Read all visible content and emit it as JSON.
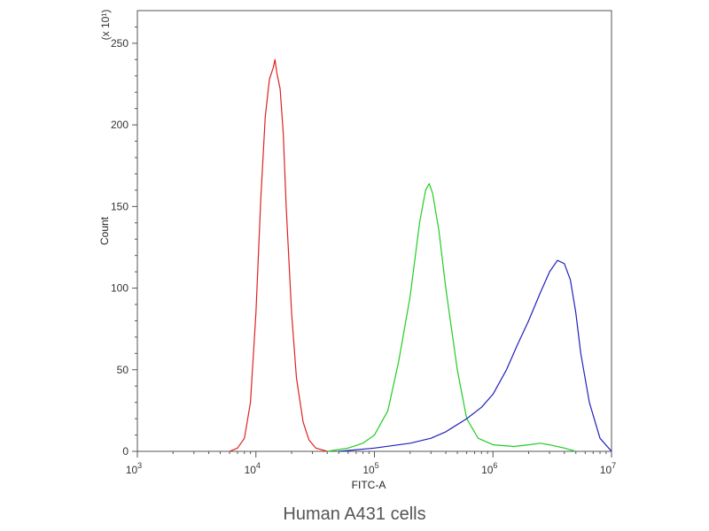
{
  "chart_data": {
    "type": "line",
    "title": "",
    "caption": "Human A431 cells",
    "xlabel": "FITC-A",
    "ylabel": "Count",
    "y_multiplier_label": "(x 10¹)",
    "xscale": "log",
    "xlim": [
      1000,
      10000000
    ],
    "ylim": [
      0,
      270
    ],
    "x_ticks": [
      {
        "base": "10",
        "exp": "3"
      },
      {
        "base": "10",
        "exp": "4"
      },
      {
        "base": "10",
        "exp": "5"
      },
      {
        "base": "10",
        "exp": "6"
      },
      {
        "base": "10",
        "exp": "7"
      }
    ],
    "y_ticks": [
      "0",
      "50",
      "100",
      "150",
      "200",
      "250"
    ],
    "grid": false,
    "series": [
      {
        "color": "#e02020",
        "x": [
          6000,
          7000,
          8000,
          9000,
          10000,
          11000,
          12000,
          13000,
          14000,
          14500,
          15000,
          16000,
          17000,
          18000,
          20000,
          22000,
          25000,
          28000,
          32000,
          40000
        ],
        "y": [
          0,
          2,
          8,
          30,
          85,
          155,
          205,
          228,
          235,
          240,
          232,
          222,
          195,
          150,
          85,
          45,
          18,
          7,
          2,
          0
        ]
      },
      {
        "color": "#22cc22",
        "x": [
          40000,
          60000,
          80000,
          100000,
          130000,
          160000,
          200000,
          240000,
          270000,
          290000,
          310000,
          350000,
          400000,
          500000,
          600000,
          750000,
          1000000,
          1500000,
          2000000,
          2500000,
          3000000,
          4000000,
          5000000
        ],
        "y": [
          0,
          2,
          5,
          10,
          25,
          55,
          95,
          140,
          160,
          164,
          158,
          135,
          100,
          50,
          20,
          8,
          4,
          3,
          4,
          5,
          4,
          2,
          0
        ]
      },
      {
        "color": "#2020bb",
        "x": [
          50000,
          100000,
          200000,
          300000,
          400000,
          600000,
          800000,
          1000000,
          1300000,
          1600000,
          2000000,
          2500000,
          3000000,
          3500000,
          4000000,
          4500000,
          5000000,
          5500000,
          6500000,
          8000000,
          10000000
        ],
        "y": [
          0,
          2,
          5,
          8,
          12,
          20,
          27,
          35,
          50,
          65,
          80,
          97,
          110,
          117,
          115,
          105,
          85,
          60,
          30,
          8,
          0
        ]
      }
    ]
  }
}
